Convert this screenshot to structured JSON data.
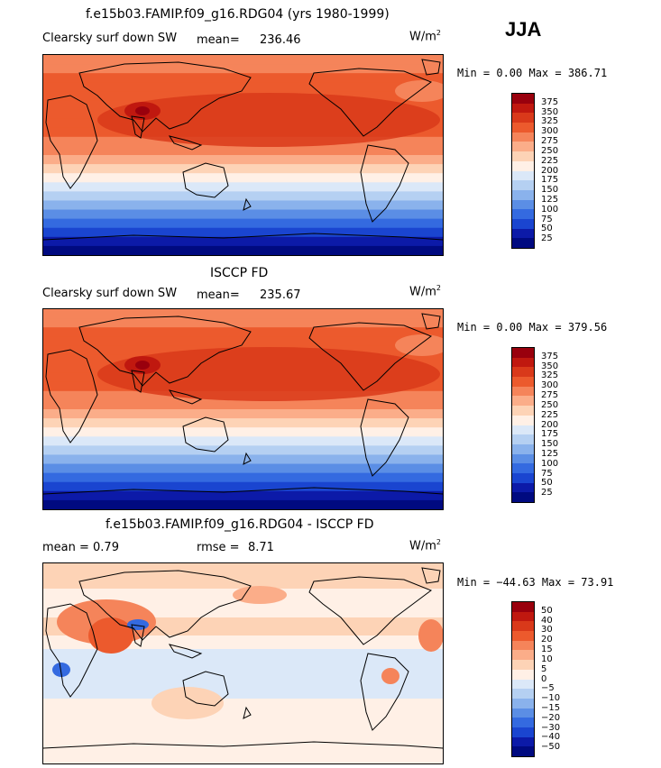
{
  "season": "JJA",
  "unit": "W/m",
  "unit_sup": "2",
  "panels": [
    {
      "title": "f.e15b03.FAMIP.f09_g16.RDG04 (yrs 1980-1999)",
      "left_label": "Clearsky surf down SW",
      "stat_label": "mean=",
      "stat_value": "236.46",
      "minmax": "Min =    0.00 Max = 386.71",
      "colorbar_labels": [
        "375",
        "350",
        "325",
        "300",
        "275",
        "250",
        "225",
        "200",
        "175",
        "150",
        "125",
        "100",
        "75",
        "50",
        "25"
      ],
      "colorbar_colors": [
        "#99000d",
        "#c0180f",
        "#d9391a",
        "#ec5a2d",
        "#f5845a",
        "#fbad89",
        "#fdd3b6",
        "#fff0e6",
        "#dbe8f8",
        "#b5d0f2",
        "#8ab2ec",
        "#5b8ee5",
        "#346ae0",
        "#1a45d0",
        "#0c1aa8",
        "#000a80"
      ],
      "field": "model"
    },
    {
      "title": "ISCCP FD",
      "left_label": "Clearsky surf down SW",
      "stat_label": "mean=",
      "stat_value": "235.67",
      "minmax": "Min =    0.00 Max = 379.56",
      "colorbar_labels": [
        "375",
        "350",
        "325",
        "300",
        "275",
        "250",
        "225",
        "200",
        "175",
        "150",
        "125",
        "100",
        "75",
        "50",
        "25"
      ],
      "colorbar_colors": [
        "#99000d",
        "#c0180f",
        "#d9391a",
        "#ec5a2d",
        "#f5845a",
        "#fbad89",
        "#fdd3b6",
        "#fff0e6",
        "#dbe8f8",
        "#b5d0f2",
        "#8ab2ec",
        "#5b8ee5",
        "#346ae0",
        "#1a45d0",
        "#0c1aa8",
        "#000a80"
      ],
      "field": "obs"
    },
    {
      "title": "f.e15b03.FAMIP.f09_g16.RDG04 - ISCCP FD",
      "left_label": "mean =    0.79",
      "stat_label": "rmse =",
      "stat_value": "8.71",
      "minmax": "Min = −44.63 Max =  73.91",
      "colorbar_labels": [
        "50",
        "40",
        "30",
        "20",
        "15",
        "10",
        "5",
        "0",
        "−5",
        "−10",
        "−15",
        "−20",
        "−30",
        "−40",
        "−50"
      ],
      "colorbar_colors": [
        "#99000d",
        "#c0180f",
        "#d9391a",
        "#ec5a2d",
        "#f5845a",
        "#fbad89",
        "#fdd3b6",
        "#fff0e6",
        "#dbe8f8",
        "#b5d0f2",
        "#8ab2ec",
        "#5b8ee5",
        "#346ae0",
        "#1a45d0",
        "#0c1aa8",
        "#000a80"
      ],
      "field": "diff"
    }
  ]
}
